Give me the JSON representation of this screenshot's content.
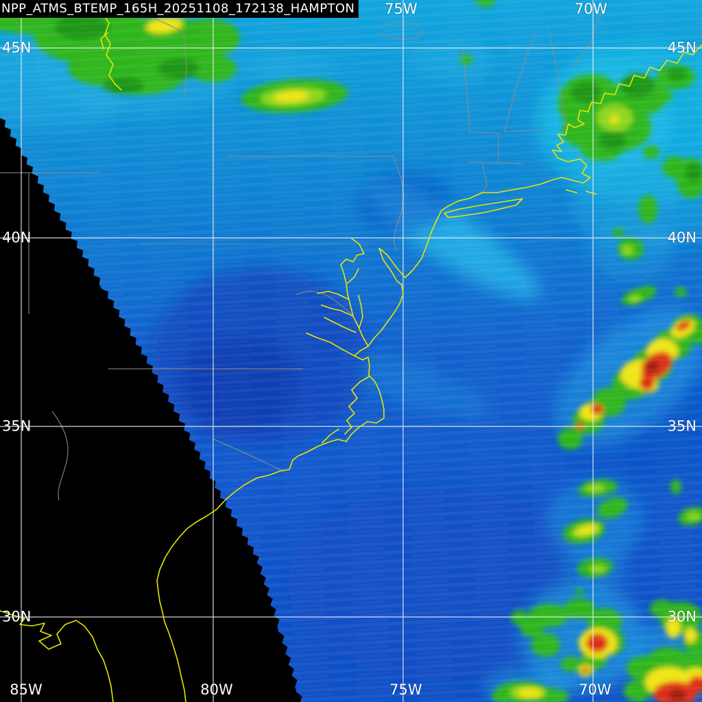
{
  "title": {
    "text": "NPP_ATMS_BTEMP_165H_20251108_172138_HAMPTON"
  },
  "grid": {
    "lat_labels": [
      "45N",
      "40N",
      "35N",
      "30N"
    ],
    "lon_labels_top": [
      "75W",
      "70W"
    ],
    "lon_labels_bottom": [
      "85W",
      "80W",
      "75W",
      "70W"
    ]
  },
  "colors": {
    "no_data": "#000000",
    "coastline": "#e8e600",
    "state_border": "#8c8c8c",
    "grid": "#f0f0f0",
    "label_text": "#ffffff",
    "btemp_scale_cold_to_warm": [
      "#29c9ec",
      "#0fa8de",
      "#0e86d4",
      "#145fce",
      "#0c45bd",
      "#1d9618",
      "#2eb51c",
      "#9ad816",
      "#efe512",
      "#dd2f17",
      "#9c1a0e"
    ]
  }
}
